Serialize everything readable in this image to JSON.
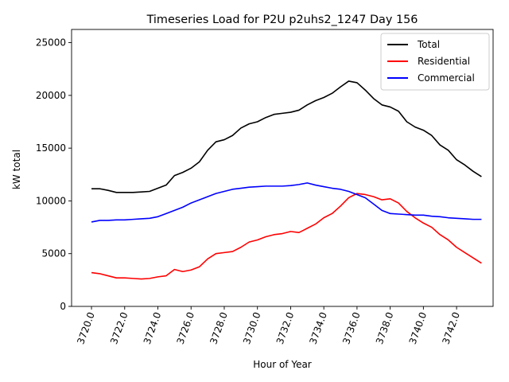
{
  "chart_data": {
    "type": "line",
    "title": "Timeseries Load for P2U p2uhs2_1247  Day 156",
    "xlabel": "Hour of Year",
    "ylabel": "kW total",
    "xlim": [
      3718.8,
      3744.2
    ],
    "ylim": [
      0,
      26250
    ],
    "xticks": [
      3720,
      3722,
      3724,
      3726,
      3728,
      3730,
      3732,
      3734,
      3736,
      3738,
      3740,
      3742
    ],
    "xtick_labels": [
      "3720.0",
      "3722.0",
      "3724.0",
      "3726.0",
      "3728.0",
      "3730.0",
      "3732.0",
      "3734.0",
      "3736.0",
      "3738.0",
      "3740.0",
      "3742.0"
    ],
    "yticks": [
      0,
      5000,
      10000,
      15000,
      20000,
      25000
    ],
    "ytick_labels": [
      "0",
      "5000",
      "10000",
      "15000",
      "20000",
      "25000"
    ],
    "legend_position": "top-right",
    "x": [
      3720.0,
      3720.5,
      3721.0,
      3721.5,
      3722.0,
      3722.5,
      3723.0,
      3723.5,
      3724.0,
      3724.5,
      3725.0,
      3725.5,
      3726.0,
      3726.5,
      3727.0,
      3727.5,
      3728.0,
      3728.5,
      3729.0,
      3729.5,
      3730.0,
      3730.5,
      3731.0,
      3731.5,
      3732.0,
      3732.5,
      3733.0,
      3733.5,
      3734.0,
      3734.5,
      3735.0,
      3735.5,
      3736.0,
      3736.5,
      3737.0,
      3737.5,
      3738.0,
      3738.5,
      3739.0,
      3739.5,
      3740.0,
      3740.5,
      3741.0,
      3741.5,
      3742.0,
      3742.5,
      3743.0,
      3743.5
    ],
    "series": [
      {
        "name": "Total",
        "color": "#000000",
        "values": [
          11150,
          11150,
          11000,
          10800,
          10800,
          10800,
          10850,
          10900,
          11200,
          11500,
          12400,
          12700,
          13100,
          13700,
          14800,
          15600,
          15800,
          16200,
          16900,
          17300,
          17500,
          17900,
          18200,
          18300,
          18400,
          18600,
          19100,
          19500,
          19800,
          20200,
          20800,
          21350,
          21200,
          20500,
          19700,
          19100,
          18900,
          18500,
          17500,
          17000,
          16700,
          16200,
          15300,
          14800,
          13900,
          13400,
          12800,
          12300
        ]
      },
      {
        "name": "Residential",
        "color": "#ff0000",
        "values": [
          3200,
          3100,
          2900,
          2700,
          2700,
          2650,
          2600,
          2650,
          2800,
          2900,
          3500,
          3300,
          3450,
          3750,
          4500,
          5000,
          5100,
          5200,
          5600,
          6100,
          6300,
          6600,
          6800,
          6900,
          7100,
          7000,
          7400,
          7800,
          8400,
          8800,
          9500,
          10300,
          10700,
          10600,
          10400,
          10100,
          10200,
          9800,
          9000,
          8400,
          7900,
          7500,
          6800,
          6300,
          5600,
          5100,
          4600,
          4100
        ]
      },
      {
        "name": "Commercial",
        "color": "#0000ff",
        "values": [
          8000,
          8150,
          8150,
          8200,
          8200,
          8250,
          8300,
          8350,
          8500,
          8800,
          9100,
          9400,
          9800,
          10100,
          10400,
          10700,
          10900,
          11100,
          11200,
          11300,
          11350,
          11400,
          11400,
          11400,
          11450,
          11550,
          11700,
          11500,
          11350,
          11200,
          11100,
          10900,
          10600,
          10300,
          9700,
          9100,
          8800,
          8750,
          8700,
          8650,
          8650,
          8550,
          8500,
          8400,
          8350,
          8300,
          8250,
          8250
        ]
      }
    ]
  }
}
